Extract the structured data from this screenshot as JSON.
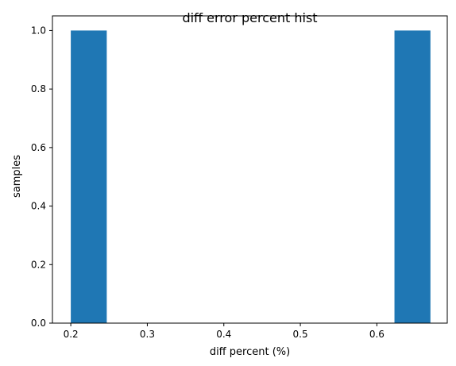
{
  "chart_data": {
    "type": "bar",
    "title": "diff error percent hist",
    "xlabel": "diff percent (%)",
    "ylabel": "samples",
    "xlim": [
      0.176,
      0.692
    ],
    "ylim": [
      0.0,
      1.05
    ],
    "xticks": [
      "0.2",
      "0.3",
      "0.4",
      "0.5",
      "0.6"
    ],
    "xtick_values": [
      0.2,
      0.3,
      0.4,
      0.5,
      0.6
    ],
    "yticks": [
      "0.0",
      "0.2",
      "0.4",
      "0.6",
      "0.8",
      "1.0"
    ],
    "ytick_values": [
      0.0,
      0.2,
      0.4,
      0.6,
      0.8,
      1.0
    ],
    "bins": [
      {
        "x0": 0.2,
        "x1": 0.247,
        "value": 1
      },
      {
        "x0": 0.247,
        "x1": 0.294,
        "value": 0
      },
      {
        "x0": 0.294,
        "x1": 0.341,
        "value": 0
      },
      {
        "x0": 0.341,
        "x1": 0.388,
        "value": 0
      },
      {
        "x0": 0.388,
        "x1": 0.435,
        "value": 0
      },
      {
        "x0": 0.435,
        "x1": 0.482,
        "value": 0
      },
      {
        "x0": 0.482,
        "x1": 0.529,
        "value": 0
      },
      {
        "x0": 0.529,
        "x1": 0.576,
        "value": 0
      },
      {
        "x0": 0.576,
        "x1": 0.623,
        "value": 0
      },
      {
        "x0": 0.623,
        "x1": 0.67,
        "value": 1
      }
    ],
    "bar_color": "#1f77b4",
    "grid": false
  }
}
